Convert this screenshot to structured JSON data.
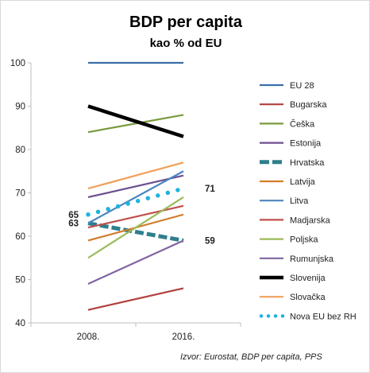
{
  "chart_data": {
    "type": "line",
    "title": "BDP per capita",
    "subtitle": "kao % od EU",
    "x": [
      "2008.",
      "2016."
    ],
    "ylim": [
      40,
      100
    ],
    "yticks": [
      40,
      50,
      60,
      70,
      80,
      90,
      100
    ],
    "grid": false,
    "legend_position": "right",
    "series": [
      {
        "name": "EU 28",
        "values": [
          100,
          100
        ],
        "color": "#3b6ea8",
        "style": "solid"
      },
      {
        "name": "Bugarska",
        "values": [
          43,
          48
        ],
        "color": "#b0413e",
        "style": "solid"
      },
      {
        "name": "Češka",
        "values": [
          84,
          88
        ],
        "color": "#7a9a3d",
        "style": "solid"
      },
      {
        "name": "Estonija",
        "values": [
          69,
          74
        ],
        "color": "#6b4f8f",
        "style": "solid"
      },
      {
        "name": "Hrvatska",
        "values": [
          63,
          59
        ],
        "color": "#2f7f8c",
        "style": "dashed"
      },
      {
        "name": "Latvija",
        "values": [
          59,
          65
        ],
        "color": "#d27c2c",
        "style": "solid"
      },
      {
        "name": "Litva",
        "values": [
          63,
          75
        ],
        "color": "#4a86c0",
        "style": "solid"
      },
      {
        "name": "Madjarska",
        "values": [
          62,
          67
        ],
        "color": "#c0504d",
        "style": "solid"
      },
      {
        "name": "Poljska",
        "values": [
          55,
          69
        ],
        "color": "#9bbb59",
        "style": "solid"
      },
      {
        "name": "Rumunjska",
        "values": [
          49,
          59
        ],
        "color": "#8064a2",
        "style": "solid"
      },
      {
        "name": "Slovenija",
        "values": [
          90,
          83
        ],
        "color": "#000000",
        "style": "bold"
      },
      {
        "name": "Slovačka",
        "values": [
          71,
          77
        ],
        "color": "#f2a05b",
        "style": "solid"
      },
      {
        "name": "Nova EU bez RH",
        "values": [
          65,
          71
        ],
        "color": "#1fb3e0",
        "style": "dotted"
      }
    ],
    "annotations": [
      {
        "text": "65",
        "x": "2008.",
        "y": 65,
        "side": "left"
      },
      {
        "text": "63",
        "x": "2008.",
        "y": 63,
        "side": "left"
      },
      {
        "text": "71",
        "x": "2016.",
        "y": 71,
        "side": "right"
      },
      {
        "text": "59",
        "x": "2016.",
        "y": 59,
        "side": "right"
      }
    ],
    "source": "Izvor:  Eurostat,  BDP per capita,  PPS"
  }
}
